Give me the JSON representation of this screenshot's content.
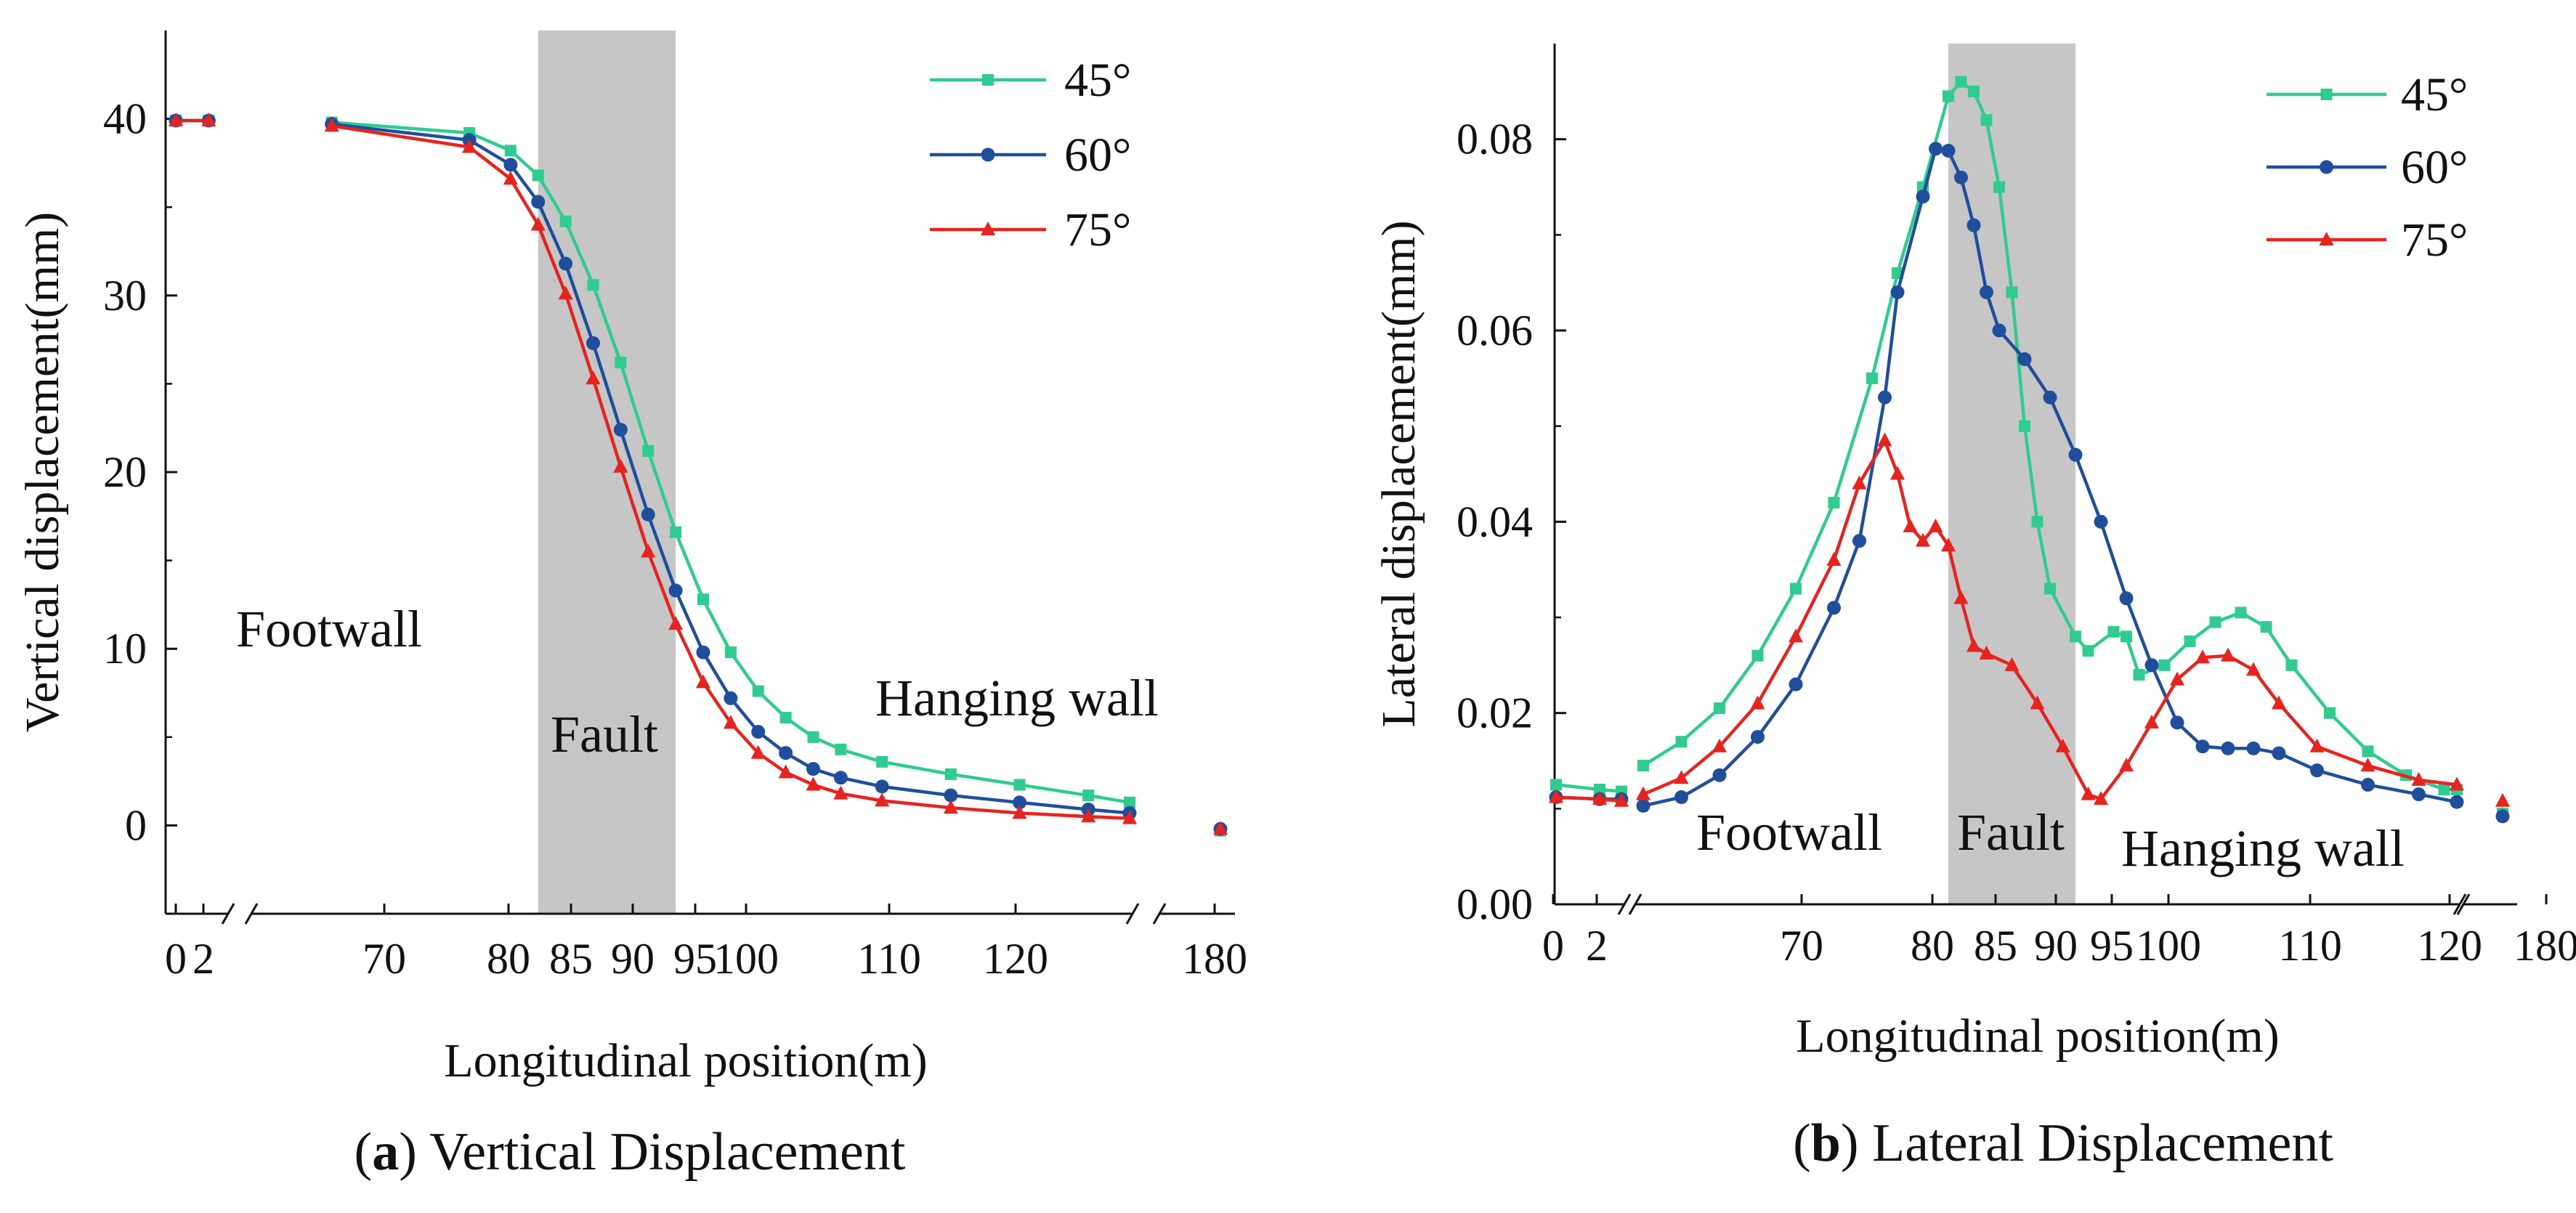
{
  "chart_data": [
    {
      "panel": "a",
      "type": "line",
      "caption_letter": "a",
      "caption_text": "Vertical Displacement",
      "xlabel": "Longitudinal position(m)",
      "ylabel": "Vertical displacement(mm)",
      "ylim": [
        -5,
        45
      ],
      "yticks": [
        0,
        10,
        20,
        30,
        40
      ],
      "xticks": [
        "0",
        "2",
        "70",
        "80",
        "85",
        "90",
        "95",
        "100",
        "110",
        "120",
        "180"
      ],
      "fault_zone": [
        85,
        95
      ],
      "regions": [
        "Footwall",
        "Fault",
        "Hanging wall"
      ],
      "legend": [
        "45°",
        "60°",
        "75°"
      ],
      "colors": [
        "#2ecc8f",
        "#1f4e9c",
        "#e8221c"
      ],
      "markers": [
        "square",
        "circle",
        "triangle"
      ],
      "series": [
        {
          "name": "45°",
          "points": [
            [
              0,
              39.9
            ],
            [
              2,
              39.9
            ],
            [
              70,
              39.8
            ],
            [
              80,
              39.2
            ],
            [
              83,
              38.2
            ],
            [
              85,
              36.8
            ],
            [
              87,
              34.2
            ],
            [
              89,
              30.6
            ],
            [
              91,
              26.2
            ],
            [
              93,
              21.2
            ],
            [
              95,
              16.6
            ],
            [
              97,
              12.8
            ],
            [
              99,
              9.8
            ],
            [
              101,
              7.6
            ],
            [
              103,
              6.1
            ],
            [
              105,
              5.0
            ],
            [
              107,
              4.3
            ],
            [
              110,
              3.6
            ],
            [
              115,
              2.9
            ],
            [
              120,
              2.3
            ],
            [
              125,
              1.7
            ],
            [
              128,
              1.3
            ],
            [
              180,
              -0.3
            ]
          ]
        },
        {
          "name": "60°",
          "points": [
            [
              0,
              39.9
            ],
            [
              2,
              39.9
            ],
            [
              70,
              39.7
            ],
            [
              80,
              38.8
            ],
            [
              83,
              37.4
            ],
            [
              85,
              35.3
            ],
            [
              87,
              31.8
            ],
            [
              89,
              27.3
            ],
            [
              91,
              22.4
            ],
            [
              93,
              17.6
            ],
            [
              95,
              13.3
            ],
            [
              97,
              9.8
            ],
            [
              99,
              7.2
            ],
            [
              101,
              5.3
            ],
            [
              103,
              4.1
            ],
            [
              105,
              3.2
            ],
            [
              107,
              2.7
            ],
            [
              110,
              2.2
            ],
            [
              115,
              1.7
            ],
            [
              120,
              1.3
            ],
            [
              125,
              0.9
            ],
            [
              128,
              0.7
            ],
            [
              180,
              -0.2
            ]
          ]
        },
        {
          "name": "75°",
          "points": [
            [
              0,
              39.9
            ],
            [
              2,
              39.9
            ],
            [
              70,
              39.6
            ],
            [
              80,
              38.4
            ],
            [
              83,
              36.6
            ],
            [
              85,
              34.0
            ],
            [
              87,
              30.1
            ],
            [
              89,
              25.3
            ],
            [
              91,
              20.3
            ],
            [
              93,
              15.5
            ],
            [
              95,
              11.4
            ],
            [
              97,
              8.1
            ],
            [
              99,
              5.8
            ],
            [
              101,
              4.1
            ],
            [
              103,
              3.0
            ],
            [
              105,
              2.3
            ],
            [
              107,
              1.8
            ],
            [
              110,
              1.4
            ],
            [
              115,
              1.0
            ],
            [
              120,
              0.7
            ],
            [
              125,
              0.5
            ],
            [
              128,
              0.4
            ],
            [
              180,
              -0.2
            ]
          ]
        }
      ]
    },
    {
      "panel": "b",
      "type": "line",
      "caption_letter": "b",
      "caption_text": "Lateral Displacement",
      "xlabel": "Longitudinal position(m)",
      "ylabel": "Lateral displacement(mm)",
      "ylim": [
        0,
        0.09
      ],
      "yticks": [
        "0.00",
        "0.02",
        "0.04",
        "0.06",
        "0.08"
      ],
      "xticks": [
        "0",
        "2",
        "70",
        "80",
        "85",
        "90",
        "95",
        "100",
        "110",
        "120",
        "180"
      ],
      "fault_zone": [
        85,
        95
      ],
      "regions": [
        "Footwall",
        "Fault",
        "Hanging wall"
      ],
      "legend": [
        "45°",
        "60°",
        "75°"
      ],
      "colors": [
        "#2ecc8f",
        "#1f4e9c",
        "#e8221c"
      ],
      "markers": [
        "square",
        "circle",
        "triangle"
      ],
      "series": [
        {
          "name": "45°",
          "points": [
            [
              0,
              0.0125
            ],
            [
              2,
              0.012
            ],
            [
              3,
              0.0118
            ],
            [
              61,
              0.0145
            ],
            [
              64,
              0.017
            ],
            [
              67,
              0.0205
            ],
            [
              70,
              0.026
            ],
            [
              73,
              0.033
            ],
            [
              76,
              0.042
            ],
            [
              79,
              0.055
            ],
            [
              81,
              0.066
            ],
            [
              83,
              0.075
            ],
            [
              85,
              0.0845
            ],
            [
              86,
              0.086
            ],
            [
              87,
              0.085
            ],
            [
              88,
              0.082
            ],
            [
              89,
              0.075
            ],
            [
              90,
              0.064
            ],
            [
              91,
              0.05
            ],
            [
              92,
              0.04
            ],
            [
              93,
              0.033
            ],
            [
              95,
              0.028
            ],
            [
              96,
              0.0265
            ],
            [
              98,
              0.0285
            ],
            [
              99,
              0.028
            ],
            [
              100,
              0.024
            ],
            [
              102,
              0.025
            ],
            [
              104,
              0.0275
            ],
            [
              106,
              0.0295
            ],
            [
              108,
              0.0305
            ],
            [
              110,
              0.029
            ],
            [
              112,
              0.025
            ],
            [
              115,
              0.02
            ],
            [
              118,
              0.016
            ],
            [
              121,
              0.0135
            ],
            [
              124,
              0.012
            ],
            [
              125,
              0.012
            ],
            [
              180,
              0.0095
            ]
          ]
        },
        {
          "name": "60°",
          "points": [
            [
              0,
              0.0112
            ],
            [
              2,
              0.011
            ],
            [
              3,
              0.011
            ],
            [
              61,
              0.0103
            ],
            [
              64,
              0.0112
            ],
            [
              67,
              0.0135
            ],
            [
              70,
              0.0175
            ],
            [
              73,
              0.023
            ],
            [
              76,
              0.031
            ],
            [
              78,
              0.038
            ],
            [
              80,
              0.053
            ],
            [
              81,
              0.064
            ],
            [
              83,
              0.074
            ],
            [
              84,
              0.079
            ],
            [
              85,
              0.0788
            ],
            [
              86,
              0.076
            ],
            [
              87,
              0.071
            ],
            [
              88,
              0.064
            ],
            [
              89,
              0.06
            ],
            [
              91,
              0.057
            ],
            [
              93,
              0.053
            ],
            [
              95,
              0.047
            ],
            [
              97,
              0.04
            ],
            [
              99,
              0.032
            ],
            [
              101,
              0.025
            ],
            [
              103,
              0.019
            ],
            [
              105,
              0.0165
            ],
            [
              107,
              0.0163
            ],
            [
              109,
              0.0163
            ],
            [
              111,
              0.0158
            ],
            [
              114,
              0.014
            ],
            [
              118,
              0.0125
            ],
            [
              122,
              0.0115
            ],
            [
              125,
              0.0107
            ],
            [
              180,
              0.0092
            ]
          ]
        },
        {
          "name": "75°",
          "points": [
            [
              0,
              0.0112
            ],
            [
              2,
              0.011
            ],
            [
              3,
              0.0108
            ],
            [
              61,
              0.0115
            ],
            [
              64,
              0.0132
            ],
            [
              67,
              0.0165
            ],
            [
              70,
              0.021
            ],
            [
              73,
              0.028
            ],
            [
              76,
              0.036
            ],
            [
              78,
              0.044
            ],
            [
              80,
              0.0485
            ],
            [
              81,
              0.045
            ],
            [
              82,
              0.0395
            ],
            [
              83,
              0.038
            ],
            [
              84,
              0.0395
            ],
            [
              85,
              0.0375
            ],
            [
              86,
              0.032
            ],
            [
              87,
              0.027
            ],
            [
              88,
              0.0262
            ],
            [
              90,
              0.025
            ],
            [
              92,
              0.021
            ],
            [
              94,
              0.0165
            ],
            [
              96,
              0.0115
            ],
            [
              97,
              0.011
            ],
            [
              99,
              0.0145
            ],
            [
              101,
              0.019
            ],
            [
              103,
              0.0235
            ],
            [
              105,
              0.0258
            ],
            [
              107,
              0.026
            ],
            [
              109,
              0.0245
            ],
            [
              111,
              0.021
            ],
            [
              114,
              0.0165
            ],
            [
              118,
              0.0145
            ],
            [
              122,
              0.013
            ],
            [
              125,
              0.0125
            ],
            [
              180,
              0.0108
            ]
          ]
        }
      ]
    }
  ]
}
